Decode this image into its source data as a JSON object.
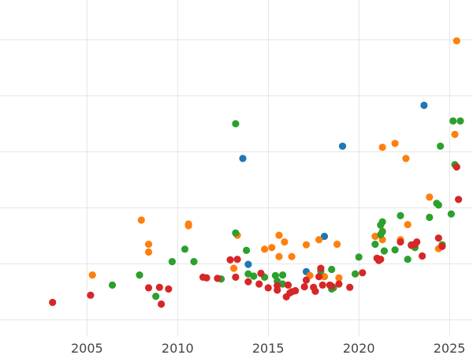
{
  "chart_data": {
    "type": "scatter",
    "title": "",
    "xlabel": "",
    "ylabel": "",
    "xlim": [
      2000.2,
      2026.3
    ],
    "ylim": [
      0,
      6
    ],
    "grid": true,
    "legend": "none",
    "x_ticks": [
      {
        "value": 2005,
        "label": "2005"
      },
      {
        "value": 2010,
        "label": "2010"
      },
      {
        "value": 2015,
        "label": "2015"
      },
      {
        "value": 2020,
        "label": "2020"
      },
      {
        "value": 2025,
        "label": "2025"
      }
    ],
    "y_gridlines": [
      0.3,
      1.3,
      2.3,
      3.3,
      4.3,
      5.3
    ],
    "series": [
      {
        "color": "#1f77b4",
        "points": [
          [
            2013.6,
            3.17
          ],
          [
            2013.9,
            1.28
          ],
          [
            2017.1,
            1.15
          ],
          [
            2018.1,
            1.78
          ],
          [
            2019.1,
            3.39
          ],
          [
            2023.6,
            4.12
          ]
        ]
      },
      {
        "color": "#ff7f0e",
        "points": [
          [
            2005.3,
            1.09
          ],
          [
            2008.0,
            2.07
          ],
          [
            2008.4,
            1.64
          ],
          [
            2008.4,
            1.5
          ],
          [
            2010.6,
            2.0
          ],
          [
            2010.6,
            1.97
          ],
          [
            2013.1,
            1.21
          ],
          [
            2013.3,
            1.8
          ],
          [
            2014.8,
            1.55
          ],
          [
            2015.2,
            1.58
          ],
          [
            2015.6,
            1.42
          ],
          [
            2015.6,
            1.8
          ],
          [
            2015.9,
            1.68
          ],
          [
            2016.3,
            1.42
          ],
          [
            2017.1,
            1.63
          ],
          [
            2017.3,
            1.08
          ],
          [
            2017.8,
            1.72
          ],
          [
            2018.1,
            1.06
          ],
          [
            2018.8,
            1.64
          ],
          [
            2018.9,
            1.04
          ],
          [
            2020.9,
            1.78
          ],
          [
            2021.3,
            3.37
          ],
          [
            2021.3,
            1.87
          ],
          [
            2021.3,
            1.72
          ],
          [
            2022.0,
            3.44
          ],
          [
            2022.3,
            1.72
          ],
          [
            2022.6,
            3.17
          ],
          [
            2022.7,
            1.99
          ],
          [
            2023.9,
            2.48
          ],
          [
            2024.4,
            1.56
          ],
          [
            2025.3,
            3.6
          ],
          [
            2025.4,
            5.27
          ]
        ]
      },
      {
        "color": "#2ca02c",
        "points": [
          [
            2006.4,
            0.91
          ],
          [
            2007.9,
            1.09
          ],
          [
            2008.8,
            0.71
          ],
          [
            2009.7,
            1.33
          ],
          [
            2010.4,
            1.55
          ],
          [
            2010.9,
            1.33
          ],
          [
            2012.4,
            1.02
          ],
          [
            2013.2,
            3.79
          ],
          [
            2013.2,
            1.84
          ],
          [
            2013.8,
            1.53
          ],
          [
            2013.9,
            1.11
          ],
          [
            2014.2,
            1.07
          ],
          [
            2014.8,
            1.05
          ],
          [
            2015.4,
            1.08
          ],
          [
            2015.5,
            0.98
          ],
          [
            2015.8,
            1.09
          ],
          [
            2015.8,
            0.93
          ],
          [
            2017.9,
            1.16
          ],
          [
            2018.5,
            1.19
          ],
          [
            2018.5,
            0.84
          ],
          [
            2018.6,
            0.86
          ],
          [
            2019.8,
            1.11
          ],
          [
            2020.0,
            1.41
          ],
          [
            2020.9,
            1.64
          ],
          [
            2021.2,
            1.81
          ],
          [
            2021.2,
            1.98
          ],
          [
            2021.3,
            2.04
          ],
          [
            2021.3,
            1.86
          ],
          [
            2021.4,
            1.52
          ],
          [
            2022.0,
            1.54
          ],
          [
            2022.3,
            2.15
          ],
          [
            2022.7,
            1.37
          ],
          [
            2022.9,
            1.63
          ],
          [
            2023.1,
            1.58
          ],
          [
            2023.9,
            2.12
          ],
          [
            2024.3,
            2.37
          ],
          [
            2024.4,
            2.34
          ],
          [
            2024.5,
            3.39
          ],
          [
            2024.6,
            1.63
          ],
          [
            2025.1,
            2.18
          ],
          [
            2025.2,
            3.84
          ],
          [
            2025.3,
            3.06
          ],
          [
            2025.6,
            3.84
          ]
        ]
      },
      {
        "color": "#d62728",
        "points": [
          [
            2003.1,
            0.6
          ],
          [
            2005.2,
            0.73
          ],
          [
            2008.4,
            0.86
          ],
          [
            2009.0,
            0.87
          ],
          [
            2009.1,
            0.57
          ],
          [
            2009.5,
            0.84
          ],
          [
            2011.4,
            1.05
          ],
          [
            2011.6,
            1.04
          ],
          [
            2012.2,
            1.03
          ],
          [
            2012.9,
            1.36
          ],
          [
            2013.2,
            1.05
          ],
          [
            2013.3,
            1.37
          ],
          [
            2013.9,
            0.97
          ],
          [
            2014.5,
            0.93
          ],
          [
            2014.6,
            1.12
          ],
          [
            2015.0,
            0.86
          ],
          [
            2015.5,
            0.82
          ],
          [
            2015.5,
            0.9
          ],
          [
            2016.0,
            0.7
          ],
          [
            2016.1,
            0.91
          ],
          [
            2016.2,
            0.77
          ],
          [
            2016.3,
            0.79
          ],
          [
            2016.5,
            0.81
          ],
          [
            2017.0,
            0.88
          ],
          [
            2017.1,
            1.0
          ],
          [
            2017.5,
            0.87
          ],
          [
            2017.6,
            0.8
          ],
          [
            2017.8,
            1.06
          ],
          [
            2017.9,
            1.21
          ],
          [
            2018.0,
            0.91
          ],
          [
            2018.4,
            0.91
          ],
          [
            2018.5,
            0.89
          ],
          [
            2018.9,
            0.93
          ],
          [
            2019.5,
            0.87
          ],
          [
            2020.2,
            1.13
          ],
          [
            2021.0,
            1.39
          ],
          [
            2021.1,
            1.35
          ],
          [
            2021.2,
            1.37
          ],
          [
            2022.3,
            1.68
          ],
          [
            2022.9,
            1.62
          ],
          [
            2023.1,
            1.64
          ],
          [
            2023.2,
            1.68
          ],
          [
            2023.5,
            1.43
          ],
          [
            2024.4,
            1.75
          ],
          [
            2024.6,
            1.6
          ],
          [
            2025.4,
            3.02
          ],
          [
            2025.5,
            2.44
          ]
        ]
      }
    ]
  }
}
